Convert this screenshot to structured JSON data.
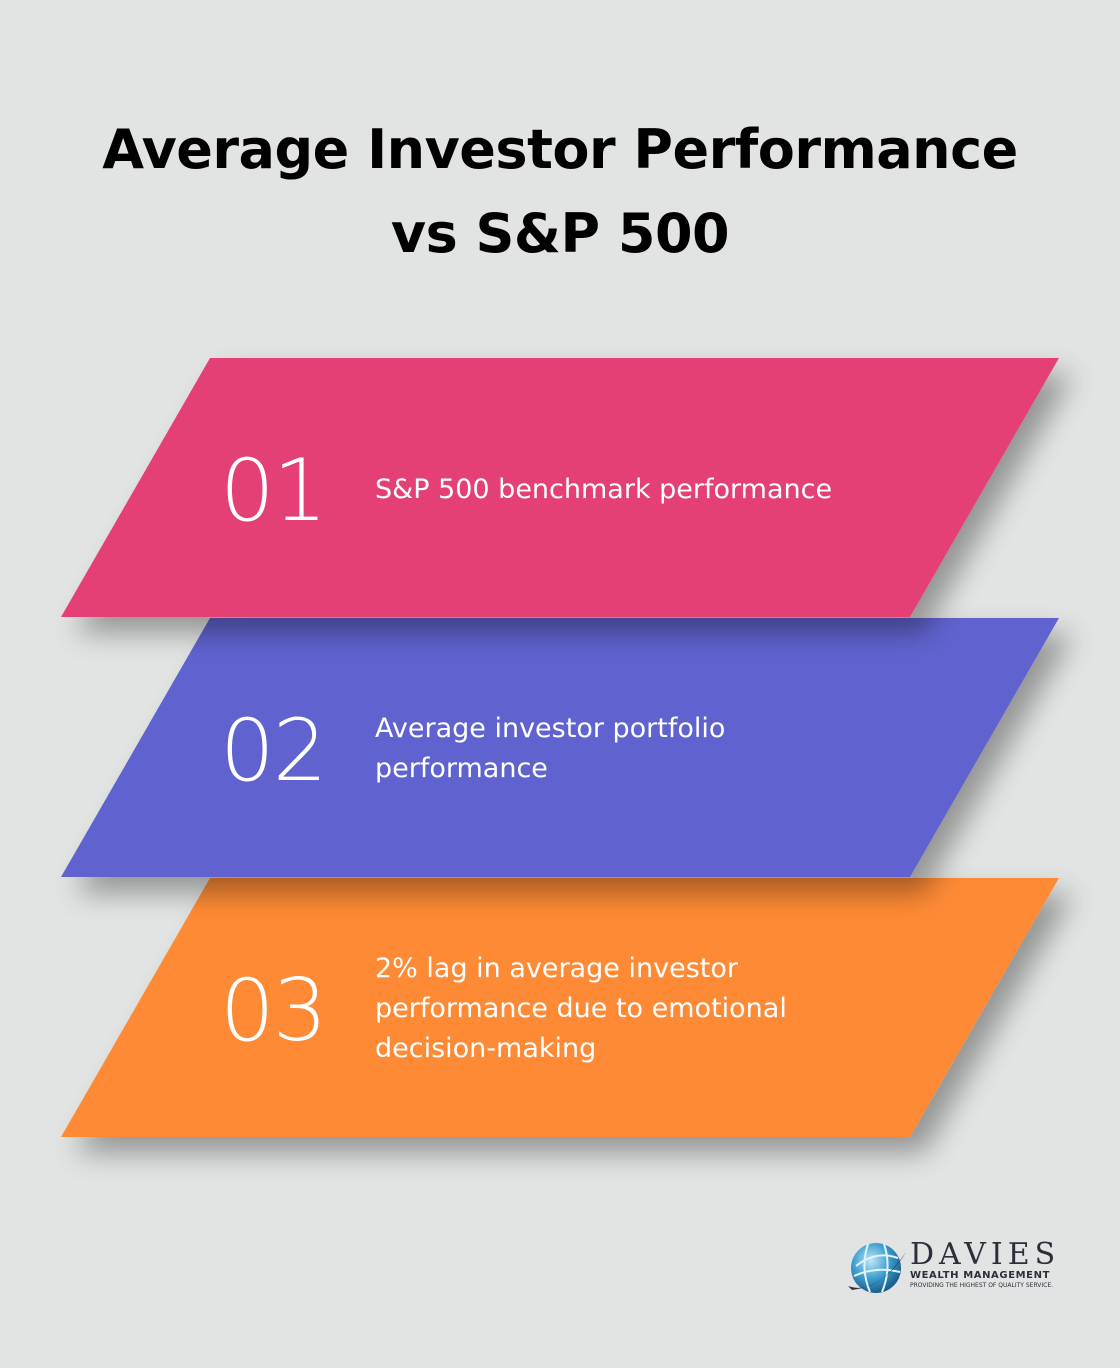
{
  "title": {
    "line1": "Average Investor Performance",
    "line2": "vs S&P 500"
  },
  "steps": [
    {
      "number": "01",
      "text": "S&P 500 benchmark performance",
      "color": "#e44174"
    },
    {
      "number": "02",
      "text": "Average investor portfolio performance",
      "color": "#6163cf"
    },
    {
      "number": "03",
      "text": "2% lag in average investor performance due to emotional decision-making",
      "color": "#fe8a34"
    }
  ],
  "logo": {
    "icon": "globe-swoosh-icon",
    "name": "DAVIES",
    "subtitle": "WEALTH MANAGEMENT",
    "tagline": "PROVIDING THE HIGHEST OF QUALITY SERVICE."
  }
}
